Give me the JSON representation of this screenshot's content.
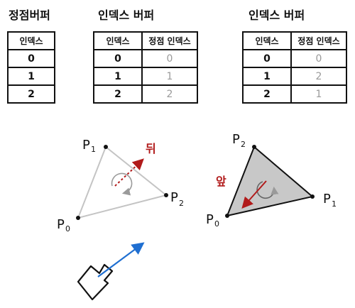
{
  "vertex_buffer": {
    "title": "정점버퍼",
    "header": "인덱스",
    "rows": [
      "0",
      "1",
      "2"
    ]
  },
  "index_buffer_left": {
    "title": "인덱스 버퍼",
    "headers": [
      "인덱스",
      "정점 인덱스"
    ],
    "rows": [
      [
        "0",
        "0"
      ],
      [
        "1",
        "1"
      ],
      [
        "2",
        "2"
      ]
    ]
  },
  "index_buffer_right": {
    "title": "인덱스 버퍼",
    "headers": [
      "인덱스",
      "정점 인덱스"
    ],
    "rows": [
      [
        "0",
        "0"
      ],
      [
        "1",
        "2"
      ],
      [
        "2",
        "1"
      ]
    ]
  },
  "triangle_left": {
    "labels": {
      "p0": "P",
      "p0_sub": "0",
      "p1": "P",
      "p1_sub": "1",
      "p2": "P",
      "p2_sub": "2"
    },
    "face_label": "뒤"
  },
  "triangle_right": {
    "labels": {
      "p0": "P",
      "p0_sub": "0",
      "p1": "P",
      "p1_sub": "1",
      "p2": "P",
      "p2_sub": "2"
    },
    "face_label": "앞"
  },
  "colors": {
    "red": "#b11a1a",
    "blue": "#1f6fd1",
    "gray_fill": "#c8c8c8",
    "light_edge": "#c4c4c4"
  }
}
